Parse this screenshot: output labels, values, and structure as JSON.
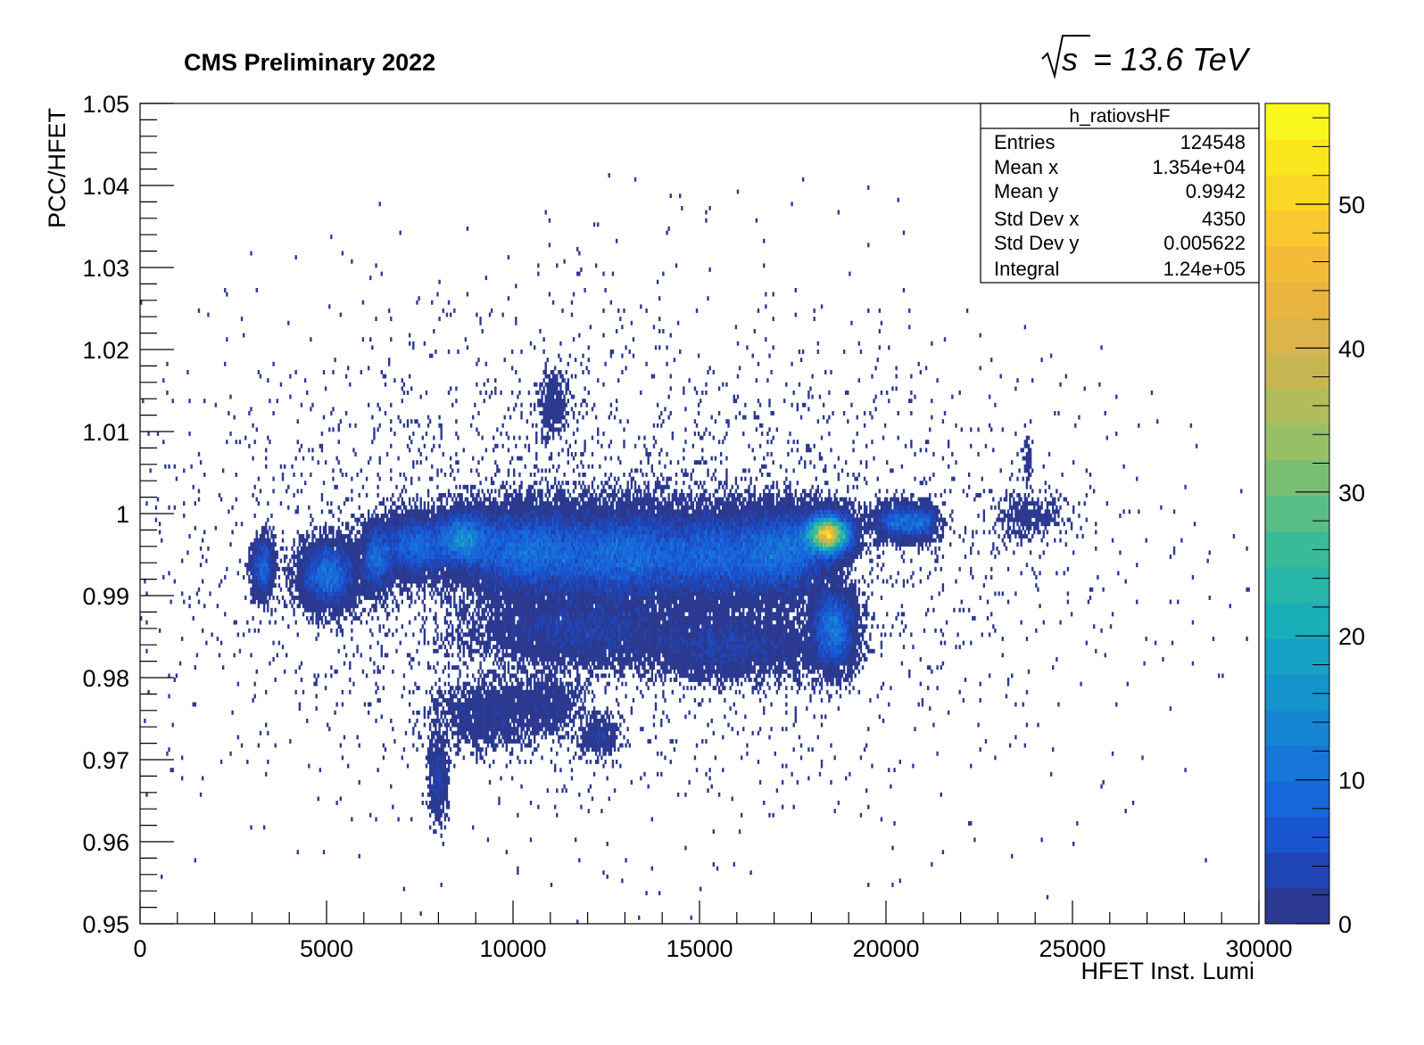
{
  "header": {
    "title": "CMS Preliminary 2022",
    "energy": "= 13.6 TeV",
    "energy_symbol": "s"
  },
  "stats_box": {
    "name": "h_ratiovsHF",
    "rows": [
      {
        "label": "Entries",
        "value": "124548"
      },
      {
        "label": "Mean x",
        "value": "1.354e+04"
      },
      {
        "label": "Mean y",
        "value": "0.9942"
      },
      {
        "label": "Std Dev x",
        "value": "4350"
      },
      {
        "label": "Std Dev y",
        "value": "0.005622"
      },
      {
        "label": "Integral",
        "value": "1.24e+05"
      }
    ]
  },
  "chart_data": {
    "type": "heatmap",
    "title": "CMS Preliminary 2022",
    "xlabel": "HFET Inst. Lumi",
    "ylabel": "PCC/HFET",
    "xlim": [
      0,
      30000
    ],
    "ylim": [
      0.95,
      1.05
    ],
    "x_ticks": [
      "0",
      "5000",
      "10000",
      "15000",
      "20000",
      "25000",
      "30000"
    ],
    "x_tick_values": [
      0,
      5000,
      10000,
      15000,
      20000,
      25000,
      30000
    ],
    "y_ticks": [
      "0.95",
      "0.96",
      "0.97",
      "0.98",
      "0.99",
      "1",
      "1.01",
      "1.02",
      "1.03",
      "1.04",
      "1.05"
    ],
    "y_tick_values": [
      0.95,
      0.96,
      0.97,
      0.98,
      0.99,
      1.0,
      1.01,
      1.02,
      1.03,
      1.04,
      1.05
    ],
    "z_range": [
      0,
      57
    ],
    "z_ticks": [
      "0",
      "10",
      "20",
      "30",
      "40",
      "50"
    ],
    "z_tick_values": [
      0,
      10,
      20,
      30,
      40,
      50
    ],
    "colormap": [
      "#2b3990",
      "#1f45b5",
      "#1a55d0",
      "#1767dc",
      "#1677d9",
      "#1686d2",
      "#1594cb",
      "#15a2c4",
      "#1aaeb8",
      "#25b6a9",
      "#3abb98",
      "#58be86",
      "#78bf74",
      "#96bf66",
      "#b1bc5a",
      "#c8b652",
      "#dbb44a",
      "#eab441",
      "#f4bb39",
      "#f9c92f",
      "#fbd826",
      "#fbe61e",
      "#f9f71e"
    ],
    "grid": false,
    "legend": "none",
    "hotspot": {
      "x": 18400,
      "y": 0.9975,
      "peak_entries": 55
    },
    "density_components": [
      {
        "x": 3300,
        "y": 0.9935,
        "sx": 150,
        "sy": 0.0018,
        "w": 1500
      },
      {
        "x": 5050,
        "y": 0.9925,
        "sx": 380,
        "sy": 0.002,
        "w": 5200
      },
      {
        "x": 6350,
        "y": 0.9945,
        "sx": 220,
        "sy": 0.002,
        "w": 2600
      },
      {
        "x": 7400,
        "y": 0.996,
        "sx": 500,
        "sy": 0.0019,
        "w": 5500
      },
      {
        "x": 8650,
        "y": 0.997,
        "sx": 380,
        "sy": 0.0017,
        "w": 5500
      },
      {
        "x": 10300,
        "y": 0.9955,
        "sx": 950,
        "sy": 0.0026,
        "w": 15000
      },
      {
        "x": 12900,
        "y": 0.995,
        "sx": 1100,
        "sy": 0.0028,
        "w": 18000
      },
      {
        "x": 15600,
        "y": 0.995,
        "sx": 1000,
        "sy": 0.0028,
        "w": 14000
      },
      {
        "x": 17300,
        "y": 0.9955,
        "sx": 600,
        "sy": 0.0026,
        "w": 9000
      },
      {
        "x": 18450,
        "y": 0.9975,
        "sx": 330,
        "sy": 0.0013,
        "w": 13000
      },
      {
        "x": 18600,
        "y": 0.986,
        "sx": 300,
        "sy": 0.0025,
        "w": 5500
      },
      {
        "x": 11800,
        "y": 0.986,
        "sx": 1500,
        "sy": 0.0022,
        "w": 6000
      },
      {
        "x": 15800,
        "y": 0.984,
        "sx": 1300,
        "sy": 0.002,
        "w": 5000
      },
      {
        "x": 9300,
        "y": 0.9755,
        "sx": 700,
        "sy": 0.002,
        "w": 1600
      },
      {
        "x": 8000,
        "y": 0.968,
        "sx": 130,
        "sy": 0.0025,
        "w": 700
      },
      {
        "x": 10900,
        "y": 0.977,
        "sx": 500,
        "sy": 0.0018,
        "w": 900
      },
      {
        "x": 12350,
        "y": 0.973,
        "sx": 250,
        "sy": 0.0012,
        "w": 500
      },
      {
        "x": 11100,
        "y": 1.0135,
        "sx": 200,
        "sy": 0.002,
        "w": 350
      },
      {
        "x": 20400,
        "y": 0.999,
        "sx": 380,
        "sy": 0.001,
        "w": 2600
      },
      {
        "x": 21000,
        "y": 0.999,
        "sx": 200,
        "sy": 0.0011,
        "w": 800
      },
      {
        "x": 23900,
        "y": 0.9995,
        "sx": 500,
        "sy": 0.0015,
        "w": 380
      },
      {
        "x": 23800,
        "y": 1.0065,
        "sx": 40,
        "sy": 0.0015,
        "w": 60
      },
      {
        "x": 12500,
        "y": 0.995,
        "sx": 6500,
        "sy": 0.015,
        "w": 4000
      }
    ]
  }
}
